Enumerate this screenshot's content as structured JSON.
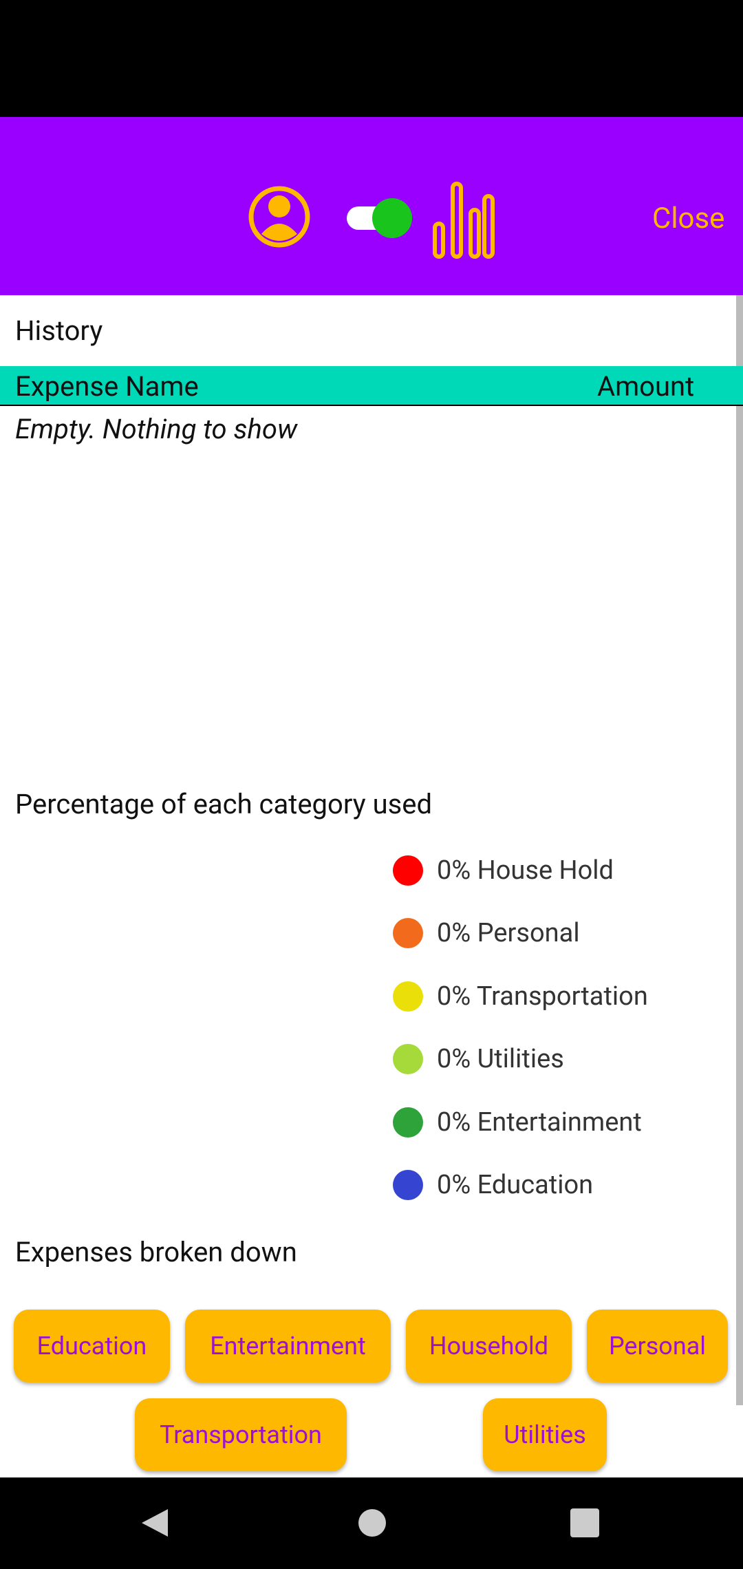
{
  "header": {
    "close": "Close"
  },
  "history": {
    "title": "History",
    "columns": [
      "Expense Name",
      "Amount"
    ],
    "empty": "Empty. Nothing to show"
  },
  "percentages": {
    "title": "Percentage of each category used",
    "items": [
      "0% House Hold",
      "0% Personal",
      "0% Transportation",
      "0% Utilities",
      "0% Entertainment",
      "0% Education"
    ]
  },
  "breakdown": {
    "title": "Expenses broken down",
    "buttons": [
      "Education",
      "Entertainment",
      "Household",
      "Personal",
      "Transportation",
      "Utilities"
    ]
  }
}
